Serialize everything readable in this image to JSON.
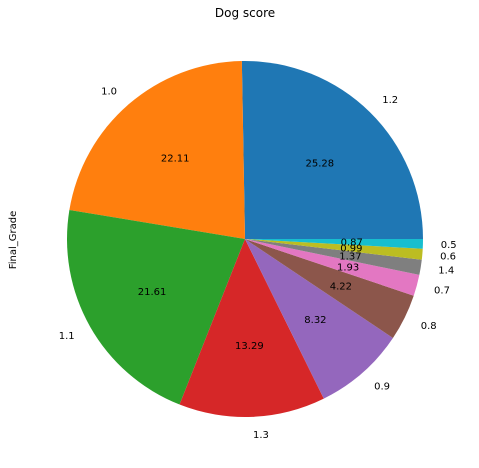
{
  "chart_data": {
    "type": "pie",
    "title": "Dog score",
    "ylabel": "Final_Grade",
    "categories": [
      "1.2",
      "1.0",
      "1.1",
      "1.3",
      "0.9",
      "0.8",
      "0.7",
      "1.4",
      "0.6",
      "0.5"
    ],
    "values": [
      25.28,
      22.11,
      21.61,
      13.29,
      8.32,
      4.22,
      1.93,
      1.37,
      0.99,
      0.87
    ],
    "value_labels": [
      "25.28",
      "22.11",
      "21.61",
      "13.29",
      "8.32",
      "4.22",
      "1.93",
      "1.37",
      "0.99",
      "0.87"
    ],
    "colors": [
      "#1f77b4",
      "#ff7f0e",
      "#2ca02c",
      "#d62728",
      "#9467bd",
      "#8c564b",
      "#e377c2",
      "#7f7f7f",
      "#bcbd22",
      "#17becf"
    ],
    "start_angle_deg": 0,
    "direction": "counterclockwise"
  }
}
